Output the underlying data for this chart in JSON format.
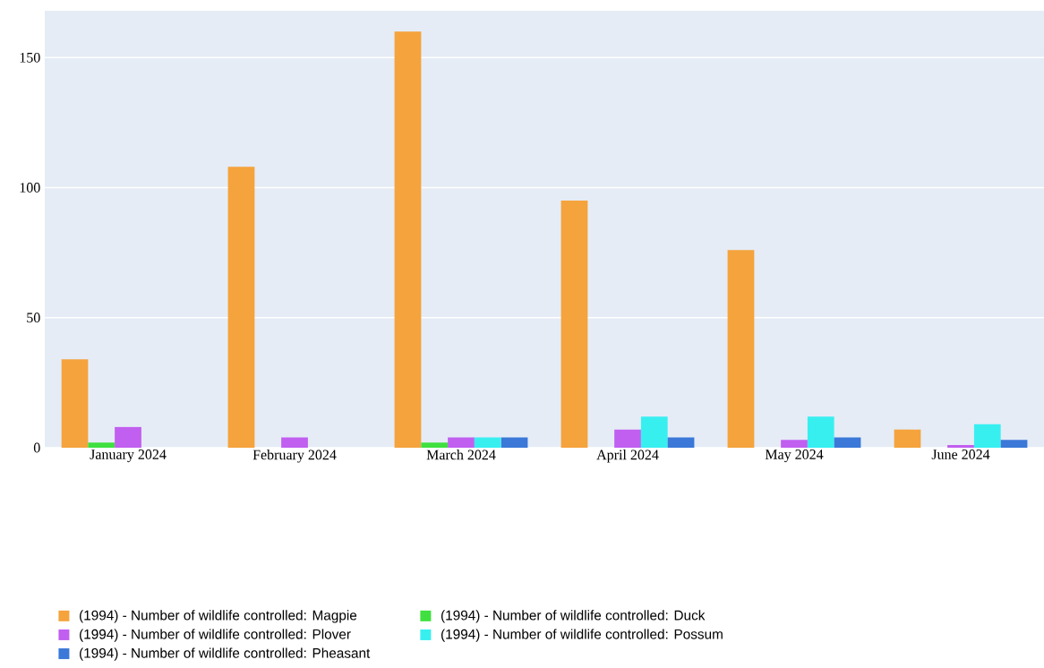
{
  "chart_data": {
    "type": "bar",
    "categories": [
      "January 2024",
      "February 2024",
      "March 2024",
      "April 2024",
      "May 2024",
      "June 2024"
    ],
    "series": [
      {
        "name": "(1994) - Number of wildlife controlled: Magpie",
        "color": "#f5a33c",
        "values": [
          34,
          108,
          160,
          95,
          76,
          7
        ]
      },
      {
        "name": "(1994) - Number of wildlife controlled: Duck",
        "color": "#3fe03f",
        "values": [
          2,
          null,
          2,
          null,
          null,
          null
        ]
      },
      {
        "name": "(1994) - Number of wildlife controlled: Plover",
        "color": "#c15ff0",
        "values": [
          8,
          4,
          4,
          7,
          3,
          1
        ]
      },
      {
        "name": "(1994) - Number of wildlife controlled: Possum",
        "color": "#38eff0",
        "values": [
          null,
          null,
          4,
          12,
          12,
          9
        ]
      },
      {
        "name": "(1994) - Number of wildlife controlled: Pheasant",
        "color": "#3b78d8",
        "values": [
          null,
          null,
          4,
          4,
          4,
          3
        ]
      }
    ],
    "ylim": [
      0,
      168
    ],
    "yticks": [
      0,
      50,
      100,
      150
    ],
    "grid": "y",
    "legend": "bottom left"
  }
}
